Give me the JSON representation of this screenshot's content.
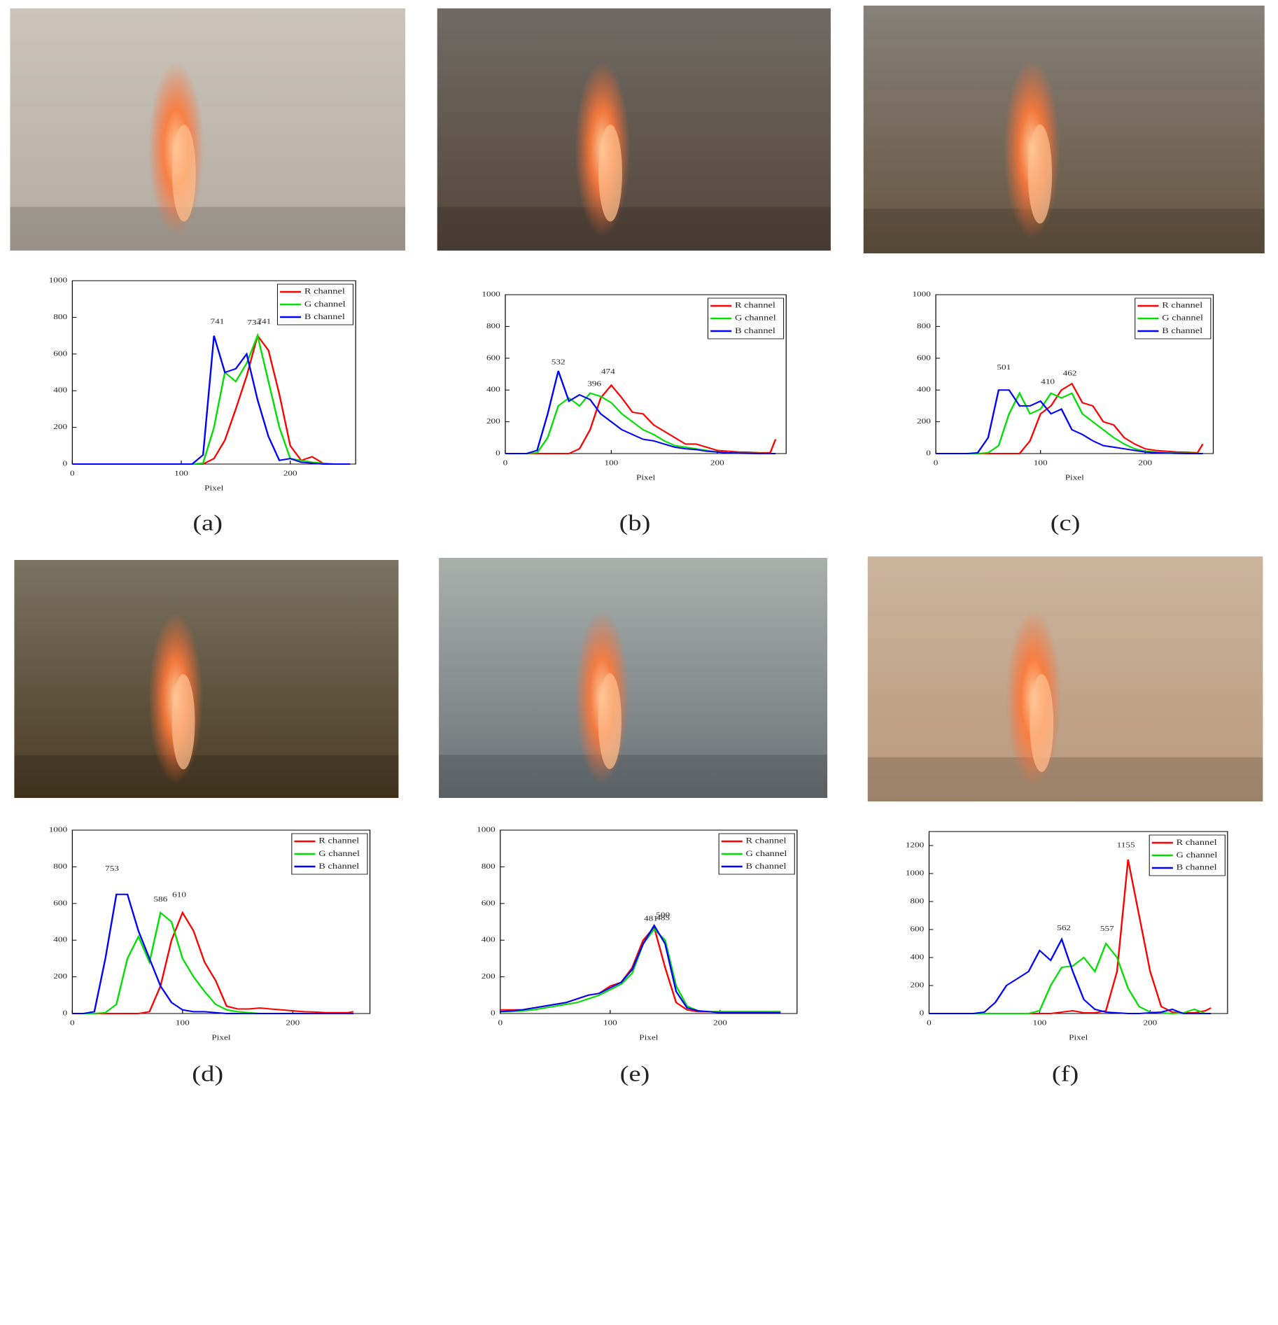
{
  "chart_data": [
    {
      "type": "line",
      "caption": "(a)",
      "x_label": "Pixel",
      "legend": "upper right",
      "x": [
        0,
        10,
        20,
        30,
        40,
        50,
        60,
        70,
        80,
        90,
        100,
        110,
        120,
        130,
        140,
        150,
        160,
        170,
        180,
        190,
        200,
        210,
        220,
        230,
        240,
        250,
        255
      ],
      "xlim": [
        0,
        260
      ],
      "xticks": [
        0,
        100,
        200
      ],
      "ylim": [
        0,
        1000
      ],
      "yticks": [
        0,
        200,
        400,
        600,
        800,
        1000
      ],
      "series": [
        {
          "name": "R channel",
          "color": "#ff0000",
          "values": [
            0,
            0,
            0,
            0,
            0,
            0,
            0,
            0,
            0,
            0,
            0,
            0,
            0,
            30,
            130,
            300,
            480,
            700,
            620,
            380,
            100,
            20,
            40,
            5,
            0,
            0,
            0
          ]
        },
        {
          "name": "G channel",
          "color": "#00e000",
          "values": [
            0,
            0,
            0,
            0,
            0,
            0,
            0,
            0,
            0,
            0,
            0,
            0,
            5,
            200,
            500,
            450,
            550,
            700,
            450,
            200,
            30,
            20,
            10,
            5,
            0,
            0,
            0
          ]
        },
        {
          "name": "B channel",
          "color": "#0000ff",
          "values": [
            0,
            0,
            0,
            0,
            0,
            0,
            0,
            0,
            0,
            0,
            0,
            0,
            50,
            700,
            500,
            520,
            600,
            350,
            150,
            20,
            30,
            10,
            5,
            0,
            0,
            0,
            0
          ]
        }
      ],
      "annotations": [
        {
          "x": 133,
          "value": 741
        },
        {
          "x": 167,
          "value": 734
        },
        {
          "x": 176,
          "value": 741
        }
      ]
    },
    {
      "type": "line",
      "caption": "(b)",
      "x_label": "Pixel",
      "legend": "upper right",
      "x": [
        0,
        10,
        20,
        30,
        40,
        50,
        60,
        70,
        80,
        90,
        100,
        110,
        120,
        130,
        140,
        150,
        160,
        170,
        180,
        190,
        200,
        210,
        220,
        230,
        240,
        250,
        255
      ],
      "xlim": [
        0,
        265
      ],
      "xticks": [
        0,
        100,
        200
      ],
      "ylim": [
        0,
        1000
      ],
      "yticks": [
        0,
        200,
        400,
        600,
        800,
        1000
      ],
      "series": [
        {
          "name": "R channel",
          "color": "#ff0000",
          "values": [
            0,
            0,
            0,
            0,
            0,
            0,
            0,
            30,
            150,
            350,
            430,
            350,
            260,
            250,
            180,
            140,
            100,
            60,
            60,
            40,
            20,
            15,
            10,
            8,
            5,
            5,
            90
          ]
        },
        {
          "name": "G channel",
          "color": "#00e000",
          "values": [
            0,
            0,
            0,
            5,
            100,
            300,
            350,
            300,
            380,
            360,
            320,
            250,
            200,
            150,
            120,
            80,
            50,
            40,
            30,
            20,
            10,
            5,
            3,
            2,
            1,
            0,
            0
          ]
        },
        {
          "name": "B channel",
          "color": "#0000ff",
          "values": [
            0,
            0,
            0,
            20,
            250,
            520,
            330,
            370,
            340,
            250,
            200,
            150,
            120,
            90,
            80,
            60,
            40,
            30,
            25,
            15,
            10,
            5,
            2,
            1,
            0,
            0,
            0
          ]
        }
      ],
      "annotations": [
        {
          "x": 50,
          "value": 532
        },
        {
          "x": 84,
          "value": 396
        },
        {
          "x": 97,
          "value": 474
        }
      ]
    },
    {
      "type": "line",
      "caption": "(c)",
      "x_label": "Pixel",
      "legend": "upper right",
      "x": [
        0,
        10,
        20,
        30,
        40,
        50,
        60,
        70,
        80,
        90,
        100,
        110,
        120,
        130,
        140,
        150,
        160,
        170,
        180,
        190,
        200,
        210,
        220,
        230,
        240,
        250,
        255
      ],
      "xlim": [
        0,
        265
      ],
      "xticks": [
        0,
        100,
        200
      ],
      "ylim": [
        0,
        1000
      ],
      "yticks": [
        0,
        200,
        400,
        600,
        800,
        1000
      ],
      "series": [
        {
          "name": "R channel",
          "color": "#ff0000",
          "values": [
            0,
            0,
            0,
            0,
            0,
            0,
            0,
            0,
            0,
            80,
            250,
            300,
            400,
            440,
            320,
            300,
            200,
            180,
            100,
            60,
            30,
            20,
            15,
            10,
            8,
            5,
            60
          ]
        },
        {
          "name": "G channel",
          "color": "#00e000",
          "values": [
            0,
            0,
            0,
            0,
            0,
            5,
            50,
            250,
            380,
            250,
            280,
            380,
            350,
            380,
            250,
            200,
            150,
            100,
            60,
            30,
            15,
            10,
            5,
            3,
            2,
            1,
            0
          ]
        },
        {
          "name": "B channel",
          "color": "#0000ff",
          "values": [
            0,
            0,
            0,
            0,
            5,
            100,
            400,
            400,
            300,
            300,
            330,
            250,
            280,
            150,
            120,
            80,
            50,
            40,
            30,
            20,
            10,
            5,
            3,
            1,
            0,
            0,
            0
          ]
        }
      ],
      "annotations": [
        {
          "x": 65,
          "value": 501
        },
        {
          "x": 107,
          "value": 410
        },
        {
          "x": 128,
          "value": 462
        }
      ]
    },
    {
      "type": "line",
      "caption": "(d)",
      "x_label": "Pixel",
      "legend": "upper right",
      "x": [
        0,
        10,
        20,
        30,
        40,
        50,
        60,
        70,
        80,
        90,
        100,
        110,
        120,
        130,
        140,
        150,
        160,
        170,
        180,
        190,
        200,
        210,
        220,
        230,
        240,
        250,
        255
      ],
      "xlim": [
        0,
        270
      ],
      "xticks": [
        0,
        100,
        200
      ],
      "ylim": [
        0,
        1000
      ],
      "yticks": [
        0,
        200,
        400,
        600,
        800,
        1000
      ],
      "series": [
        {
          "name": "R channel",
          "color": "#ff0000",
          "values": [
            0,
            0,
            0,
            0,
            0,
            0,
            0,
            10,
            150,
            400,
            550,
            450,
            280,
            180,
            40,
            25,
            25,
            30,
            25,
            20,
            15,
            10,
            8,
            5,
            5,
            5,
            10
          ]
        },
        {
          "name": "G channel",
          "color": "#00e000",
          "values": [
            0,
            0,
            0,
            5,
            50,
            300,
            420,
            280,
            550,
            500,
            300,
            200,
            120,
            50,
            20,
            10,
            5,
            0,
            0,
            0,
            0,
            0,
            0,
            0,
            0,
            0,
            0
          ]
        },
        {
          "name": "B channel",
          "color": "#0000ff",
          "values": [
            0,
            0,
            10,
            300,
            650,
            650,
            450,
            300,
            150,
            60,
            20,
            10,
            10,
            5,
            0,
            0,
            0,
            0,
            0,
            0,
            0,
            0,
            0,
            0,
            0,
            0,
            0
          ]
        }
      ],
      "annotations": [
        {
          "x": 36,
          "value": 753
        },
        {
          "x": 80,
          "value": 586
        },
        {
          "x": 97,
          "value": 610
        }
      ]
    },
    {
      "type": "line",
      "caption": "(e)",
      "x_label": "Pixel",
      "legend": "upper right",
      "x": [
        0,
        10,
        20,
        30,
        40,
        50,
        60,
        70,
        80,
        90,
        100,
        110,
        120,
        130,
        140,
        150,
        160,
        170,
        180,
        190,
        200,
        210,
        220,
        230,
        240,
        250,
        255
      ],
      "xlim": [
        0,
        270
      ],
      "xticks": [
        0,
        100,
        200
      ],
      "ylim": [
        0,
        1000
      ],
      "yticks": [
        0,
        200,
        400,
        600,
        800,
        1000
      ],
      "series": [
        {
          "name": "R channel",
          "color": "#ff0000",
          "values": [
            20,
            20,
            20,
            30,
            40,
            50,
            60,
            80,
            100,
            110,
            150,
            170,
            250,
            400,
            470,
            250,
            60,
            20,
            10,
            10,
            10,
            10,
            10,
            10,
            10,
            10,
            10
          ]
        },
        {
          "name": "G channel",
          "color": "#00e000",
          "values": [
            10,
            10,
            15,
            20,
            30,
            40,
            50,
            60,
            80,
            100,
            130,
            160,
            220,
            380,
            460,
            400,
            150,
            40,
            15,
            10,
            10,
            10,
            10,
            10,
            10,
            10,
            10
          ]
        },
        {
          "name": "B channel",
          "color": "#0000ff",
          "values": [
            10,
            15,
            20,
            30,
            40,
            50,
            60,
            80,
            100,
            110,
            140,
            170,
            240,
            380,
            480,
            380,
            120,
            30,
            15,
            10,
            5,
            5,
            5,
            5,
            5,
            5,
            5
          ]
        }
      ],
      "annotations": [
        {
          "x": 137,
          "value": 481
        },
        {
          "x": 148,
          "value": 500
        },
        {
          "x": 148,
          "value": 485
        }
      ]
    },
    {
      "type": "line",
      "caption": "(f)",
      "x_label": "Pixel",
      "legend": "upper right",
      "x": [
        0,
        10,
        20,
        30,
        40,
        50,
        60,
        70,
        80,
        90,
        100,
        110,
        120,
        130,
        140,
        150,
        160,
        170,
        180,
        190,
        200,
        210,
        220,
        230,
        240,
        250,
        255
      ],
      "xlim": [
        0,
        270
      ],
      "xticks": [
        0,
        100,
        200
      ],
      "ylim": [
        0,
        1300
      ],
      "yticks": [
        0,
        200,
        400,
        600,
        800,
        1000,
        1200
      ],
      "series": [
        {
          "name": "R channel",
          "color": "#ff0000",
          "values": [
            0,
            0,
            0,
            0,
            0,
            0,
            0,
            0,
            0,
            0,
            0,
            0,
            10,
            20,
            5,
            5,
            20,
            300,
            1100,
            700,
            300,
            50,
            10,
            5,
            5,
            20,
            40
          ]
        },
        {
          "name": "G channel",
          "color": "#00e000",
          "values": [
            0,
            0,
            0,
            0,
            0,
            0,
            0,
            0,
            0,
            0,
            20,
            200,
            330,
            340,
            400,
            300,
            500,
            400,
            180,
            50,
            10,
            5,
            0,
            5,
            30,
            0,
            0
          ]
        },
        {
          "name": "B channel",
          "color": "#0000ff",
          "values": [
            0,
            0,
            0,
            0,
            0,
            10,
            80,
            200,
            250,
            300,
            450,
            380,
            530,
            300,
            100,
            30,
            10,
            5,
            0,
            0,
            5,
            10,
            30,
            0,
            0,
            0,
            0
          ]
        }
      ],
      "annotations": [
        {
          "x": 122,
          "value": 562
        },
        {
          "x": 161,
          "value": 557
        },
        {
          "x": 178,
          "value": 1155
        }
      ]
    }
  ]
}
